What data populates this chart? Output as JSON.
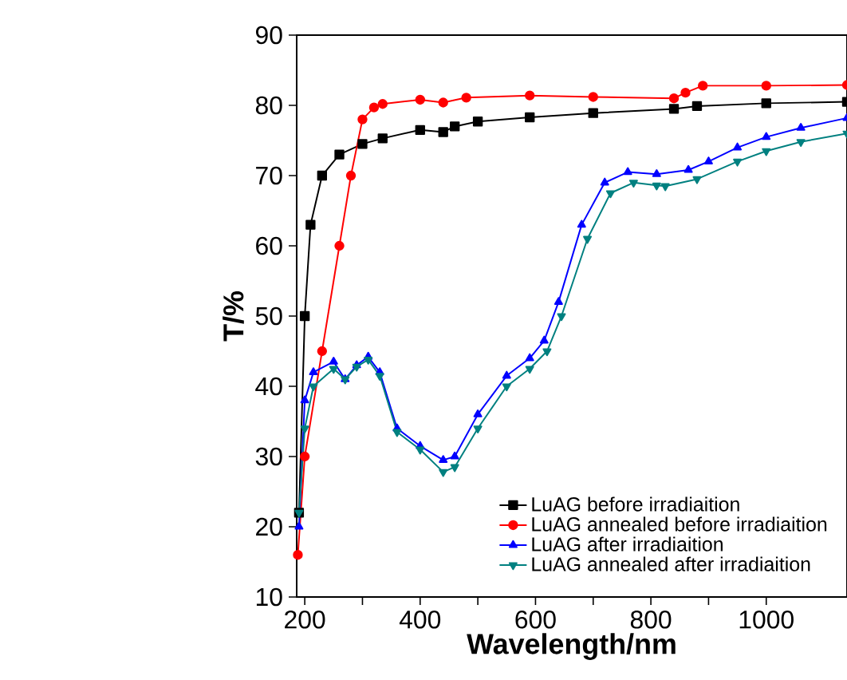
{
  "chart_data": {
    "type": "line",
    "xlabel": "Wavelength/nm",
    "ylabel": "T/%",
    "xlim": [
      186,
      1140
    ],
    "ylim": [
      10,
      90
    ],
    "xticks": [
      200,
      {
        "value": 300,
        "label": null
      },
      400,
      {
        "value": 500,
        "label": null
      },
      600,
      {
        "value": 700,
        "label": null
      },
      800,
      {
        "value": 900,
        "label": null
      },
      1000
    ],
    "yticks": [
      10,
      20,
      30,
      40,
      50,
      60,
      70,
      80,
      90
    ],
    "legend": "bottom right",
    "grid": false,
    "line_style": "solid",
    "series": [
      {
        "name": "LuAG before irradiaition",
        "color": "#000000",
        "marker": "square",
        "x": [
          190,
          200,
          210,
          230,
          260,
          300,
          335,
          400,
          440,
          460,
          500,
          590,
          700,
          840,
          880,
          1000,
          1140
        ],
        "values": [
          22,
          50,
          63,
          70,
          73,
          74.5,
          75.3,
          76.5,
          76.2,
          77,
          77.7,
          78.3,
          78.9,
          79.5,
          79.9,
          80.3,
          80.5
        ]
      },
      {
        "name": "LuAG annealed before irradiaition",
        "color": "#ff0000",
        "marker": "circle",
        "x": [
          188,
          200,
          230,
          260,
          280,
          300,
          320,
          335,
          400,
          440,
          480,
          590,
          700,
          840,
          860,
          890,
          1000,
          1140
        ],
        "values": [
          16,
          30,
          45,
          60,
          70,
          78,
          79.7,
          80.2,
          80.8,
          80.4,
          81.1,
          81.4,
          81.2,
          81.0,
          81.8,
          82.8,
          82.8,
          82.9
        ]
      },
      {
        "name": "LuAG after irradiaition",
        "color": "#0000ff",
        "marker": "triangle",
        "x": [
          190,
          200,
          215,
          250,
          270,
          290,
          310,
          330,
          360,
          400,
          440,
          460,
          500,
          550,
          590,
          615,
          640,
          680,
          720,
          760,
          810,
          865,
          900,
          950,
          1000,
          1060,
          1140
        ],
        "values": [
          20,
          38,
          42,
          43.5,
          41,
          43,
          44.2,
          42,
          34,
          31.5,
          29.5,
          30,
          36,
          41.5,
          44,
          46.5,
          52,
          63,
          69,
          70.5,
          70.2,
          70.8,
          72,
          74,
          75.5,
          76.8,
          78.2
        ]
      },
      {
        "name": "LuAG annealed after irradiaition",
        "color": "#008080",
        "marker": "triangle down",
        "x": [
          190,
          200,
          215,
          250,
          270,
          290,
          310,
          330,
          360,
          400,
          440,
          460,
          500,
          550,
          590,
          620,
          645,
          690,
          730,
          770,
          810,
          825,
          880,
          950,
          1000,
          1060,
          1140
        ],
        "values": [
          22,
          34,
          40,
          42.5,
          41,
          42.8,
          43.8,
          41.5,
          33.5,
          31,
          27.8,
          28.5,
          34,
          40,
          42.5,
          45,
          50,
          61,
          67.5,
          69,
          68.6,
          68.5,
          69.5,
          72,
          73.5,
          74.8,
          76
        ]
      }
    ]
  }
}
